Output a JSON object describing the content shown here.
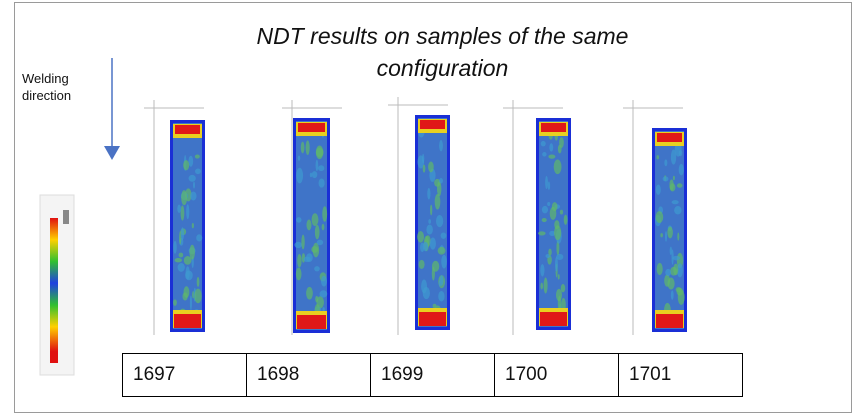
{
  "slide": {
    "title": "NDT results on samples of the same configuration",
    "direction_label": "Welding direction",
    "samples": [
      "1697",
      "1698",
      "1699",
      "1700",
      "1701"
    ]
  }
}
